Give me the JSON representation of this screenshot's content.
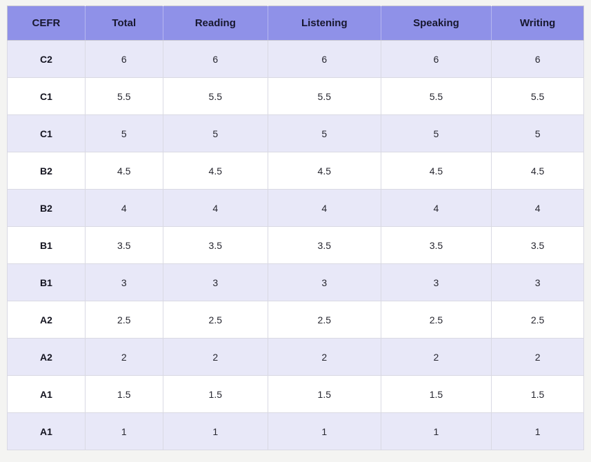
{
  "chart_data": {
    "type": "table",
    "columns": [
      "CEFR",
      "Total",
      "Reading",
      "Listening",
      "Speaking",
      "Writing"
    ],
    "rows": [
      [
        "C2",
        "6",
        "6",
        "6",
        "6",
        "6"
      ],
      [
        "C1",
        "5.5",
        "5.5",
        "5.5",
        "5.5",
        "5.5"
      ],
      [
        "C1",
        "5",
        "5",
        "5",
        "5",
        "5"
      ],
      [
        "B2",
        "4.5",
        "4.5",
        "4.5",
        "4.5",
        "4.5"
      ],
      [
        "B2",
        "4",
        "4",
        "4",
        "4",
        "4"
      ],
      [
        "B1",
        "3.5",
        "3.5",
        "3.5",
        "3.5",
        "3.5"
      ],
      [
        "B1",
        "3",
        "3",
        "3",
        "3",
        "3"
      ],
      [
        "A2",
        "2.5",
        "2.5",
        "2.5",
        "2.5",
        "2.5"
      ],
      [
        "A2",
        "2",
        "2",
        "2",
        "2",
        "2"
      ],
      [
        "A1",
        "1.5",
        "1.5",
        "1.5",
        "1.5",
        "1.5"
      ],
      [
        "A1",
        "1",
        "1",
        "1",
        "1",
        "1"
      ]
    ],
    "layout": {
      "column_widths_pct": [
        13.5,
        13.5,
        18.2,
        19.6,
        19.2,
        16.0
      ],
      "zebra_striping": "odd rows lavender, even rows white",
      "header_position": "top"
    }
  },
  "colors": {
    "header_bg": "#8f91e8",
    "header_text": "#17172e",
    "row_alt_bg": "#e8e8f8",
    "row_bg": "#ffffff",
    "grid_border": "#d9d9e3",
    "page_bg": "#f4f4f2"
  }
}
